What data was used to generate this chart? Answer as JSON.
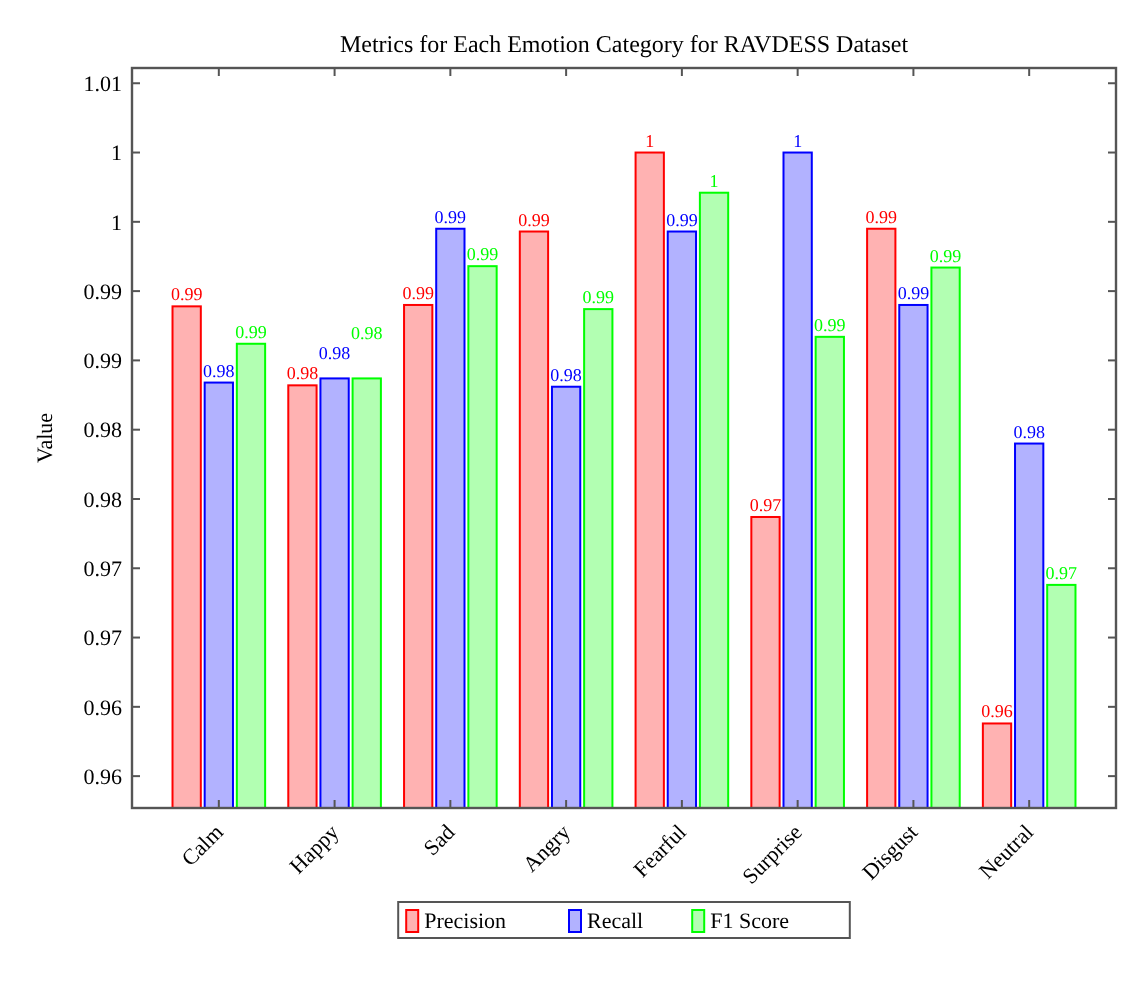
{
  "chart_data": {
    "type": "bar",
    "title": "Metrics for Each Emotion Category for RAVDESS Dataset",
    "ylabel": "Value",
    "categories": [
      "Calm",
      "Happy",
      "Sad",
      "Angry",
      "Fearful",
      "Surprise",
      "Disgust",
      "Neutral"
    ],
    "series": [
      {
        "name": "Precision",
        "color": "#ff0000",
        "values": [
          0.9889,
          0.9832,
          0.989,
          0.9943,
          1.0,
          0.9737,
          0.9945,
          0.9588
        ],
        "value_labels": [
          "0.99",
          "0.98",
          "0.99",
          "0.99",
          "1",
          "0.97",
          "0.99",
          "0.96"
        ]
      },
      {
        "name": "Recall",
        "color": "#0000ff",
        "values": [
          0.9834,
          0.9837,
          0.9945,
          0.9831,
          0.9943,
          1.0,
          0.989,
          0.979
        ],
        "value_labels": [
          "0.98",
          "0.98",
          "0.99",
          "0.98",
          "0.99",
          "1",
          "0.99",
          "0.98"
        ]
      },
      {
        "name": "F1 Score",
        "color": "#00ff00",
        "values": [
          0.9862,
          0.9837,
          0.9918,
          0.9887,
          0.9971,
          0.9867,
          0.9917,
          0.9688
        ],
        "value_labels": [
          "0.99",
          "0.98",
          "0.99",
          "0.99",
          "1",
          "0.99",
          "0.99",
          "0.97"
        ]
      }
    ],
    "ylim": [
      0.9527,
      1.0061
    ],
    "yticks": [
      {
        "value": 0.955,
        "label": "0.96"
      },
      0.96,
      {
        "value": 0.965,
        "label": "0.97"
      },
      0.97,
      {
        "value": 0.975,
        "label": "0.98"
      },
      0.98,
      {
        "value": 0.985,
        "label": "0.99"
      },
      0.99,
      {
        "value": 0.995,
        "label": "1"
      },
      {
        "value": 1.0,
        "label": "1"
      },
      {
        "value": 1.005,
        "label": "1.01"
      }
    ],
    "grid": false,
    "legend": "bottom"
  }
}
